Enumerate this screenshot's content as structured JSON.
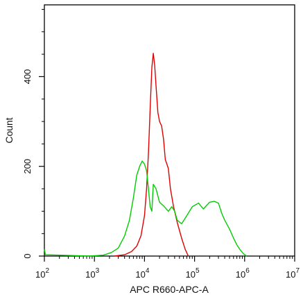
{
  "chart_data": {
    "type": "line",
    "title": "",
    "xlabel": "APC R660-APC-A",
    "ylabel": "Count",
    "x_scale": "log",
    "xlim": [
      100,
      10000000
    ],
    "ylim": [
      0,
      560
    ],
    "grid": false,
    "legend": "none",
    "x_ticks": [
      {
        "value": 100,
        "base": "10",
        "exp": "2"
      },
      {
        "value": 1000,
        "base": "10",
        "exp": "3"
      },
      {
        "value": 10000,
        "base": "10",
        "exp": "4"
      },
      {
        "value": 100000,
        "base": "10",
        "exp": "5"
      },
      {
        "value": 1000000,
        "base": "10",
        "exp": "6"
      },
      {
        "value": 10000000,
        "base": "10",
        "exp": "7"
      }
    ],
    "y_ticks": [
      {
        "value": 0,
        "label": "0"
      },
      {
        "value": 200,
        "label": "200"
      },
      {
        "value": 400,
        "label": "400"
      }
    ],
    "series": [
      {
        "color": "#e00000",
        "points": [
          [
            2500,
            0
          ],
          [
            4000,
            3
          ],
          [
            5500,
            10
          ],
          [
            7000,
            22
          ],
          [
            8500,
            45
          ],
          [
            10000,
            90
          ],
          [
            11000,
            150
          ],
          [
            12000,
            230
          ],
          [
            13000,
            330
          ],
          [
            14000,
            420
          ],
          [
            15000,
            452
          ],
          [
            16000,
            425
          ],
          [
            17000,
            380
          ],
          [
            18500,
            320
          ],
          [
            20000,
            300
          ],
          [
            22000,
            290
          ],
          [
            24000,
            260
          ],
          [
            26000,
            215
          ],
          [
            28000,
            205
          ],
          [
            30000,
            195
          ],
          [
            33000,
            150
          ],
          [
            38000,
            110
          ],
          [
            45000,
            75
          ],
          [
            55000,
            40
          ],
          [
            65000,
            15
          ],
          [
            75000,
            0
          ]
        ]
      },
      {
        "color": "#00cc00",
        "points": [
          [
            100,
            15
          ],
          [
            105,
            3
          ],
          [
            800,
            0
          ],
          [
            1500,
            2
          ],
          [
            2200,
            8
          ],
          [
            3000,
            18
          ],
          [
            4000,
            45
          ],
          [
            5000,
            80
          ],
          [
            6000,
            130
          ],
          [
            7000,
            180
          ],
          [
            8000,
            200
          ],
          [
            9000,
            212
          ],
          [
            10000,
            205
          ],
          [
            11000,
            190
          ],
          [
            12000,
            150
          ],
          [
            13000,
            110
          ],
          [
            14000,
            100
          ],
          [
            15000,
            160
          ],
          [
            17000,
            150
          ],
          [
            20000,
            120
          ],
          [
            25000,
            110
          ],
          [
            30000,
            100
          ],
          [
            35000,
            110
          ],
          [
            40000,
            100
          ],
          [
            45000,
            80
          ],
          [
            55000,
            72
          ],
          [
            70000,
            90
          ],
          [
            90000,
            110
          ],
          [
            120000,
            118
          ],
          [
            150000,
            105
          ],
          [
            200000,
            120
          ],
          [
            250000,
            122
          ],
          [
            300000,
            118
          ],
          [
            350000,
            95
          ],
          [
            400000,
            80
          ],
          [
            500000,
            60
          ],
          [
            600000,
            40
          ],
          [
            700000,
            25
          ],
          [
            800000,
            15
          ],
          [
            950000,
            5
          ],
          [
            1100000,
            0
          ]
        ]
      }
    ]
  }
}
